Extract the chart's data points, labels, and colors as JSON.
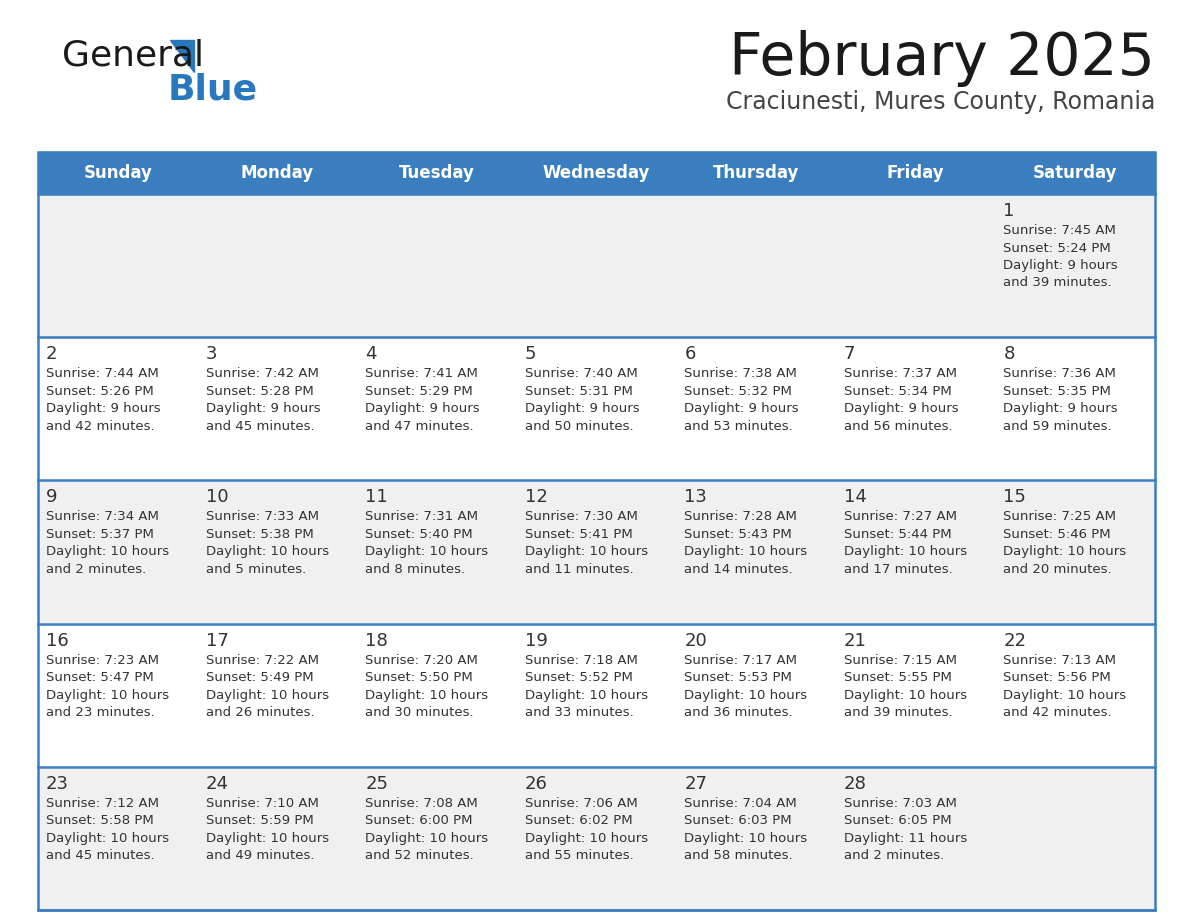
{
  "title": "February 2025",
  "subtitle": "Craciunesti, Mures County, Romania",
  "days_of_week": [
    "Sunday",
    "Monday",
    "Tuesday",
    "Wednesday",
    "Thursday",
    "Friday",
    "Saturday"
  ],
  "header_bg": "#3a7ebf",
  "header_text_color": "#ffffff",
  "row_bg_even": "#f0f0f0",
  "row_bg_odd": "#ffffff",
  "separator_color": "#3a7ebf",
  "text_color": "#333333",
  "title_color": "#1a1a1a",
  "subtitle_color": "#444444",
  "calendar": [
    [
      null,
      null,
      null,
      null,
      null,
      null,
      {
        "day": "1",
        "sunrise": "7:45 AM",
        "sunset": "5:24 PM",
        "daylight1": "9 hours",
        "daylight2": "and 39 minutes."
      }
    ],
    [
      {
        "day": "2",
        "sunrise": "7:44 AM",
        "sunset": "5:26 PM",
        "daylight1": "9 hours",
        "daylight2": "and 42 minutes."
      },
      {
        "day": "3",
        "sunrise": "7:42 AM",
        "sunset": "5:28 PM",
        "daylight1": "9 hours",
        "daylight2": "and 45 minutes."
      },
      {
        "day": "4",
        "sunrise": "7:41 AM",
        "sunset": "5:29 PM",
        "daylight1": "9 hours",
        "daylight2": "and 47 minutes."
      },
      {
        "day": "5",
        "sunrise": "7:40 AM",
        "sunset": "5:31 PM",
        "daylight1": "9 hours",
        "daylight2": "and 50 minutes."
      },
      {
        "day": "6",
        "sunrise": "7:38 AM",
        "sunset": "5:32 PM",
        "daylight1": "9 hours",
        "daylight2": "and 53 minutes."
      },
      {
        "day": "7",
        "sunrise": "7:37 AM",
        "sunset": "5:34 PM",
        "daylight1": "9 hours",
        "daylight2": "and 56 minutes."
      },
      {
        "day": "8",
        "sunrise": "7:36 AM",
        "sunset": "5:35 PM",
        "daylight1": "9 hours",
        "daylight2": "and 59 minutes."
      }
    ],
    [
      {
        "day": "9",
        "sunrise": "7:34 AM",
        "sunset": "5:37 PM",
        "daylight1": "10 hours",
        "daylight2": "and 2 minutes."
      },
      {
        "day": "10",
        "sunrise": "7:33 AM",
        "sunset": "5:38 PM",
        "daylight1": "10 hours",
        "daylight2": "and 5 minutes."
      },
      {
        "day": "11",
        "sunrise": "7:31 AM",
        "sunset": "5:40 PM",
        "daylight1": "10 hours",
        "daylight2": "and 8 minutes."
      },
      {
        "day": "12",
        "sunrise": "7:30 AM",
        "sunset": "5:41 PM",
        "daylight1": "10 hours",
        "daylight2": "and 11 minutes."
      },
      {
        "day": "13",
        "sunrise": "7:28 AM",
        "sunset": "5:43 PM",
        "daylight1": "10 hours",
        "daylight2": "and 14 minutes."
      },
      {
        "day": "14",
        "sunrise": "7:27 AM",
        "sunset": "5:44 PM",
        "daylight1": "10 hours",
        "daylight2": "and 17 minutes."
      },
      {
        "day": "15",
        "sunrise": "7:25 AM",
        "sunset": "5:46 PM",
        "daylight1": "10 hours",
        "daylight2": "and 20 minutes."
      }
    ],
    [
      {
        "day": "16",
        "sunrise": "7:23 AM",
        "sunset": "5:47 PM",
        "daylight1": "10 hours",
        "daylight2": "and 23 minutes."
      },
      {
        "day": "17",
        "sunrise": "7:22 AM",
        "sunset": "5:49 PM",
        "daylight1": "10 hours",
        "daylight2": "and 26 minutes."
      },
      {
        "day": "18",
        "sunrise": "7:20 AM",
        "sunset": "5:50 PM",
        "daylight1": "10 hours",
        "daylight2": "and 30 minutes."
      },
      {
        "day": "19",
        "sunrise": "7:18 AM",
        "sunset": "5:52 PM",
        "daylight1": "10 hours",
        "daylight2": "and 33 minutes."
      },
      {
        "day": "20",
        "sunrise": "7:17 AM",
        "sunset": "5:53 PM",
        "daylight1": "10 hours",
        "daylight2": "and 36 minutes."
      },
      {
        "day": "21",
        "sunrise": "7:15 AM",
        "sunset": "5:55 PM",
        "daylight1": "10 hours",
        "daylight2": "and 39 minutes."
      },
      {
        "day": "22",
        "sunrise": "7:13 AM",
        "sunset": "5:56 PM",
        "daylight1": "10 hours",
        "daylight2": "and 42 minutes."
      }
    ],
    [
      {
        "day": "23",
        "sunrise": "7:12 AM",
        "sunset": "5:58 PM",
        "daylight1": "10 hours",
        "daylight2": "and 45 minutes."
      },
      {
        "day": "24",
        "sunrise": "7:10 AM",
        "sunset": "5:59 PM",
        "daylight1": "10 hours",
        "daylight2": "and 49 minutes."
      },
      {
        "day": "25",
        "sunrise": "7:08 AM",
        "sunset": "6:00 PM",
        "daylight1": "10 hours",
        "daylight2": "and 52 minutes."
      },
      {
        "day": "26",
        "sunrise": "7:06 AM",
        "sunset": "6:02 PM",
        "daylight1": "10 hours",
        "daylight2": "and 55 minutes."
      },
      {
        "day": "27",
        "sunrise": "7:04 AM",
        "sunset": "6:03 PM",
        "daylight1": "10 hours",
        "daylight2": "and 58 minutes."
      },
      {
        "day": "28",
        "sunrise": "7:03 AM",
        "sunset": "6:05 PM",
        "daylight1": "11 hours",
        "daylight2": "and 2 minutes."
      },
      null
    ]
  ],
  "logo_color_general": "#1a1a1a",
  "logo_color_blue": "#2878be",
  "logo_triangle_color": "#2878be"
}
